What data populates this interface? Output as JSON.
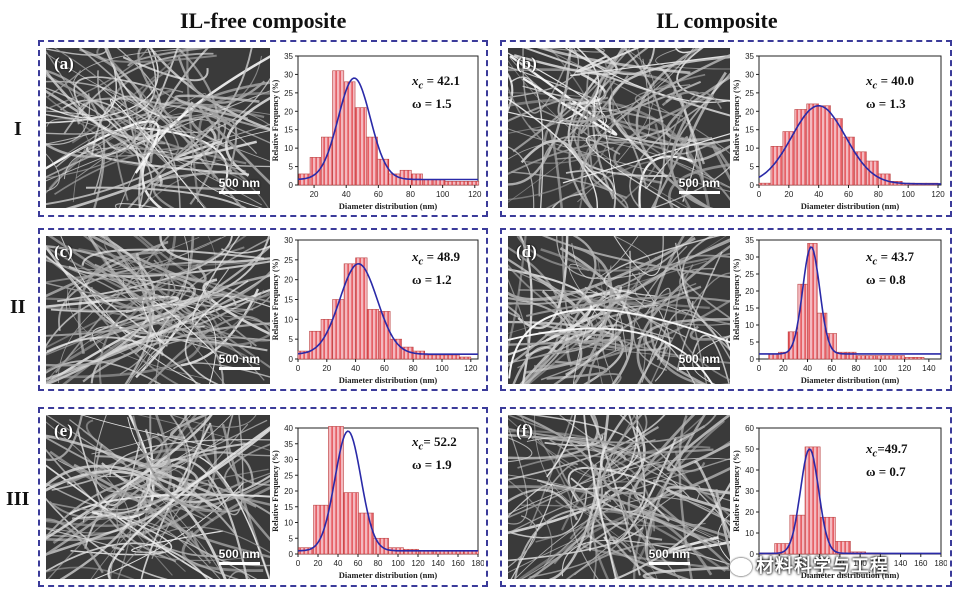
{
  "column_titles": [
    "IL-free composite",
    "IL composite"
  ],
  "row_labels": [
    "I",
    "II",
    "III"
  ],
  "scale_bar_label": "500 nm",
  "watermark": "材料科学与工程",
  "colors": {
    "border": "#3b3b9a",
    "bar_fill": "#f3b9bf",
    "bar_stripe": "#e0393f",
    "fit_curve": "#2a2aa8"
  },
  "panels": [
    {
      "letter": "(a)",
      "xc": "42.1",
      "omega": "1.5"
    },
    {
      "letter": "(b)",
      "xc": "40.0",
      "omega": "1.3"
    },
    {
      "letter": "(c)",
      "xc": "48.9",
      "omega": "1.2"
    },
    {
      "letter": "(d)",
      "xc": "43.7",
      "omega": "0.8"
    },
    {
      "letter": "(e)",
      "xc": "52.2",
      "omega": "1.9"
    },
    {
      "letter": "(f)",
      "xc": "49.7",
      "omega": "0.7"
    }
  ],
  "chart_data": [
    {
      "id": "a",
      "type": "bar",
      "xlabel": "Diameter distribution (nm)",
      "ylabel": "Relative Frequency (%)",
      "xlim": [
        10,
        122
      ],
      "ylim": [
        0,
        35
      ],
      "xticks": [
        20,
        40,
        60,
        80,
        100,
        120
      ],
      "yticks": [
        0,
        5,
        10,
        15,
        20,
        25,
        30,
        35
      ],
      "bin_width": 7,
      "x": [
        14,
        21,
        28,
        35,
        42,
        49,
        56,
        63,
        70,
        77,
        84,
        91,
        98,
        105,
        112,
        119
      ],
      "values": [
        3,
        7.5,
        13,
        31,
        28,
        21,
        13,
        7,
        3,
        4,
        3,
        1.5,
        1.5,
        1,
        1,
        1
      ],
      "fit": {
        "peak": 29,
        "center": 45,
        "sigma": 10,
        "base": 1.5
      }
    },
    {
      "id": "b",
      "type": "bar",
      "xlabel": "Diameter distribution (nm)",
      "ylabel": "Relative Frequency (%)",
      "xlim": [
        0,
        122
      ],
      "ylim": [
        0,
        35
      ],
      "xticks": [
        0,
        20,
        40,
        60,
        80,
        100,
        120
      ],
      "yticks": [
        0,
        5,
        10,
        15,
        20,
        25,
        30,
        35
      ],
      "bin_width": 8,
      "x": [
        4,
        12,
        20,
        28,
        36,
        44,
        52,
        60,
        68,
        76,
        84,
        92,
        100,
        108,
        116
      ],
      "values": [
        0.5,
        10.5,
        14.5,
        20.5,
        22,
        21.5,
        18,
        13,
        9,
        6.5,
        3,
        1,
        0.5,
        0.5,
        0.5
      ],
      "fit": {
        "peak": 21.5,
        "center": 40,
        "sigma": 18,
        "base": 0.3
      }
    },
    {
      "id": "c",
      "type": "bar",
      "xlabel": "Diameter distribution (nm)",
      "ylabel": "Relative Frequency (%)",
      "xlim": [
        0,
        125
      ],
      "ylim": [
        0,
        30
      ],
      "xticks": [
        0,
        20,
        40,
        60,
        80,
        100,
        120
      ],
      "yticks": [
        0,
        5,
        10,
        15,
        20,
        25,
        30
      ],
      "bin_width": 8,
      "x": [
        4,
        12,
        20,
        28,
        36,
        44,
        52,
        60,
        68,
        76,
        84,
        92,
        100,
        108,
        116
      ],
      "values": [
        2,
        7,
        10,
        15,
        24,
        25.5,
        12.5,
        12,
        5,
        3,
        2,
        1,
        1,
        1,
        0.5
      ],
      "fit": {
        "peak": 24,
        "center": 42,
        "sigma": 13,
        "base": 1.2
      }
    },
    {
      "id": "d",
      "type": "bar",
      "xlabel": "Diameter distribution (nm)",
      "ylabel": "Relative Frequency (%)",
      "xlim": [
        0,
        150
      ],
      "ylim": [
        0,
        35
      ],
      "xticks": [
        0,
        20,
        40,
        60,
        80,
        100,
        120,
        140
      ],
      "yticks": [
        0,
        5,
        10,
        15,
        20,
        25,
        30,
        35
      ],
      "bin_width": 8,
      "x": [
        12,
        20,
        28,
        36,
        44,
        52,
        60,
        68,
        76,
        84,
        92,
        100,
        108,
        116,
        124,
        132
      ],
      "values": [
        1.5,
        2,
        8,
        22,
        34,
        13.5,
        7.5,
        2,
        2,
        1,
        1,
        1,
        1,
        1,
        0.5,
        0.5
      ],
      "fit": {
        "peak": 33,
        "center": 43,
        "sigma": 7,
        "base": 1.5
      }
    },
    {
      "id": "e",
      "type": "bar",
      "xlabel": "Diameter distribution (nm)",
      "ylabel": "Relative Frequency (%)",
      "xlim": [
        0,
        180
      ],
      "ylim": [
        0,
        40
      ],
      "xticks": [
        0,
        20,
        40,
        60,
        80,
        100,
        120,
        140,
        160,
        180
      ],
      "yticks": [
        0,
        5,
        10,
        15,
        20,
        25,
        30,
        35,
        40
      ],
      "bin_width": 15,
      "x": [
        8,
        23,
        38,
        53,
        68,
        83,
        98,
        113,
        128,
        143,
        158,
        173
      ],
      "values": [
        2,
        15.5,
        40.5,
        19.5,
        13,
        5,
        2,
        1.5,
        1,
        1,
        1,
        1
      ],
      "fit": {
        "peak": 39,
        "center": 50,
        "sigma": 13,
        "base": 1
      }
    },
    {
      "id": "f",
      "type": "bar",
      "xlabel": "Diameter distribution (nm)",
      "ylabel": "Relative Frequency (%)",
      "xlim": [
        0,
        180
      ],
      "ylim": [
        0,
        60
      ],
      "xticks": [
        0,
        20,
        40,
        60,
        80,
        100,
        120,
        140,
        160,
        180
      ],
      "yticks": [
        0,
        10,
        20,
        30,
        40,
        50,
        60
      ],
      "bin_width": 15,
      "x": [
        8,
        23,
        38,
        53,
        68,
        83,
        98,
        113
      ],
      "values": [
        0.5,
        5,
        18.5,
        51,
        17.5,
        6,
        1,
        0.5
      ],
      "fit": {
        "peak": 50,
        "center": 50,
        "sigma": 9,
        "base": 0.3
      }
    }
  ]
}
